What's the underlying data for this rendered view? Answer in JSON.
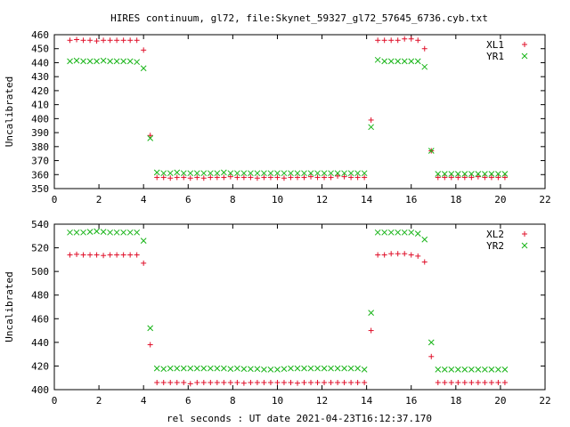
{
  "page": {
    "title": "HIRES continuum, gl72, file:Skynet_59327_gl72_57645_6736.cyb.txt",
    "xlabel": "rel seconds : UT date 2021-04-23T16:12:37.170"
  },
  "colors": {
    "red": "#e0102a",
    "green": "#18b418"
  },
  "chart_data": [
    {
      "type": "scatter",
      "ylabel": "Uncalibrated",
      "xlim": [
        0,
        22
      ],
      "ylim": [
        350,
        460
      ],
      "xticks": [
        "0",
        "2",
        "4",
        "6",
        "8",
        "10",
        "12",
        "14",
        "16",
        "18",
        "20",
        "22"
      ],
      "yticks": [
        "350",
        "360",
        "370",
        "380",
        "390",
        "400",
        "410",
        "420",
        "430",
        "440",
        "450",
        "460"
      ],
      "legend_position": "top-right",
      "series": [
        {
          "name": "XL1",
          "marker": "plus",
          "color": "red",
          "x": [
            0.7,
            1.0,
            1.3,
            1.6,
            1.9,
            2.2,
            2.5,
            2.8,
            3.1,
            3.4,
            3.7,
            4.0,
            4.3,
            4.6,
            4.9,
            5.2,
            5.5,
            5.8,
            6.1,
            6.4,
            6.7,
            7.0,
            7.3,
            7.6,
            7.9,
            8.2,
            8.5,
            8.8,
            9.1,
            9.4,
            9.7,
            10.0,
            10.3,
            10.6,
            10.9,
            11.2,
            11.5,
            11.8,
            12.1,
            12.4,
            12.7,
            13.0,
            13.3,
            13.6,
            13.9,
            14.2,
            14.5,
            14.8,
            15.1,
            15.4,
            15.7,
            16.0,
            16.3,
            16.6,
            16.9,
            17.2,
            17.5,
            17.8,
            18.1,
            18.4,
            18.7,
            19.0,
            19.3,
            19.6,
            19.9,
            20.2
          ],
          "y": [
            456,
            456.5,
            456,
            456,
            455.5,
            456,
            456,
            456,
            456,
            456,
            456,
            449,
            388,
            358,
            358,
            357.5,
            358,
            358,
            357.5,
            358,
            357.5,
            358,
            358,
            358,
            358.5,
            358,
            358,
            358,
            357.5,
            358,
            358,
            358,
            357.5,
            358,
            358,
            358,
            358.5,
            358,
            358,
            358,
            359,
            358.5,
            358,
            358,
            358,
            399,
            456,
            456,
            456,
            456,
            457,
            457,
            456,
            450,
            377,
            358,
            358,
            358,
            358,
            358,
            358,
            358.5,
            358,
            358,
            358,
            358
          ]
        },
        {
          "name": "YR1",
          "marker": "cross",
          "color": "green",
          "x": [
            0.7,
            1.0,
            1.3,
            1.6,
            1.9,
            2.2,
            2.5,
            2.8,
            3.1,
            3.4,
            3.7,
            4.0,
            4.3,
            4.6,
            4.9,
            5.2,
            5.5,
            5.8,
            6.1,
            6.4,
            6.7,
            7.0,
            7.3,
            7.6,
            7.9,
            8.2,
            8.5,
            8.8,
            9.1,
            9.4,
            9.7,
            10.0,
            10.3,
            10.6,
            10.9,
            11.2,
            11.5,
            11.8,
            12.1,
            12.4,
            12.7,
            13.0,
            13.3,
            13.6,
            13.9,
            14.2,
            14.5,
            14.8,
            15.1,
            15.4,
            15.7,
            16.0,
            16.3,
            16.6,
            16.9,
            17.2,
            17.5,
            17.8,
            18.1,
            18.4,
            18.7,
            19.0,
            19.3,
            19.6,
            19.9,
            20.2
          ],
          "y": [
            441,
            441.5,
            441,
            441,
            441,
            441.5,
            441,
            441,
            441,
            441,
            440.5,
            436,
            386,
            361.5,
            361,
            361,
            361.5,
            361,
            361,
            361,
            361,
            361,
            361,
            361.5,
            361,
            361,
            361,
            361,
            361,
            361,
            361,
            361,
            361,
            361,
            361,
            361,
            361,
            361,
            361,
            361,
            361,
            361,
            361,
            361,
            361,
            394,
            442,
            441,
            441,
            441,
            441,
            441,
            441,
            437,
            377,
            360.5,
            360.5,
            360.5,
            360.5,
            360.5,
            360.5,
            360.5,
            360.5,
            360.5,
            360.5,
            360.5
          ]
        }
      ]
    },
    {
      "type": "scatter",
      "ylabel": "Uncalibrated",
      "xlim": [
        0,
        22
      ],
      "ylim": [
        400,
        540
      ],
      "xticks": [
        "0",
        "2",
        "4",
        "6",
        "8",
        "10",
        "12",
        "14",
        "16",
        "18",
        "20",
        "22"
      ],
      "yticks": [
        "400",
        "420",
        "440",
        "460",
        "480",
        "500",
        "520",
        "540"
      ],
      "legend_position": "top-right",
      "series": [
        {
          "name": "XL2",
          "marker": "plus",
          "color": "red",
          "x": [
            0.7,
            1.0,
            1.3,
            1.6,
            1.9,
            2.2,
            2.5,
            2.8,
            3.1,
            3.4,
            3.7,
            4.0,
            4.3,
            4.6,
            4.9,
            5.2,
            5.5,
            5.8,
            6.1,
            6.4,
            6.7,
            7.0,
            7.3,
            7.6,
            7.9,
            8.2,
            8.5,
            8.8,
            9.1,
            9.4,
            9.7,
            10.0,
            10.3,
            10.6,
            10.9,
            11.2,
            11.5,
            11.8,
            12.1,
            12.4,
            12.7,
            13.0,
            13.3,
            13.6,
            13.9,
            14.2,
            14.5,
            14.8,
            15.1,
            15.4,
            15.7,
            16.0,
            16.3,
            16.6,
            16.9,
            17.2,
            17.5,
            17.8,
            18.1,
            18.4,
            18.7,
            19.0,
            19.3,
            19.6,
            19.9,
            20.2
          ],
          "y": [
            514,
            514.5,
            514,
            514,
            514,
            513.5,
            514,
            514,
            514,
            514,
            514,
            507,
            438,
            406,
            406,
            406,
            406,
            406,
            405,
            406,
            406,
            406,
            406,
            406,
            406,
            406,
            405.5,
            406,
            406,
            406,
            406,
            406,
            406,
            406,
            405.5,
            406,
            406,
            406,
            406,
            406,
            406,
            406,
            406,
            406,
            406,
            450,
            514,
            514,
            515,
            515,
            515,
            514,
            513,
            508,
            428,
            406,
            406,
            406,
            406,
            406,
            406,
            406,
            406,
            406,
            406,
            406
          ]
        },
        {
          "name": "YR2",
          "marker": "cross",
          "color": "green",
          "x": [
            0.7,
            1.0,
            1.3,
            1.6,
            1.9,
            2.2,
            2.5,
            2.8,
            3.1,
            3.4,
            3.7,
            4.0,
            4.3,
            4.6,
            4.9,
            5.2,
            5.5,
            5.8,
            6.1,
            6.4,
            6.7,
            7.0,
            7.3,
            7.6,
            7.9,
            8.2,
            8.5,
            8.8,
            9.1,
            9.4,
            9.7,
            10.0,
            10.3,
            10.6,
            10.9,
            11.2,
            11.5,
            11.8,
            12.1,
            12.4,
            12.7,
            13.0,
            13.3,
            13.6,
            13.9,
            14.2,
            14.5,
            14.8,
            15.1,
            15.4,
            15.7,
            16.0,
            16.3,
            16.6,
            16.9,
            17.2,
            17.5,
            17.8,
            18.1,
            18.4,
            18.7,
            19.0,
            19.3,
            19.6,
            19.9,
            20.2
          ],
          "y": [
            533,
            533,
            533,
            533.5,
            534,
            533.5,
            533,
            533,
            533,
            533,
            533,
            526,
            452,
            418,
            417.5,
            418,
            418,
            418,
            418,
            418,
            418,
            418,
            418,
            418,
            417.5,
            418,
            417.5,
            417.5,
            417.5,
            417,
            417,
            417,
            417.5,
            418,
            418,
            418,
            418,
            418,
            418,
            418,
            418,
            418,
            418,
            418,
            417,
            465,
            533,
            533,
            533,
            533,
            533,
            533,
            532,
            527,
            440,
            417,
            417,
            417,
            417,
            417,
            417,
            417,
            417,
            417,
            417,
            417
          ]
        }
      ]
    }
  ]
}
